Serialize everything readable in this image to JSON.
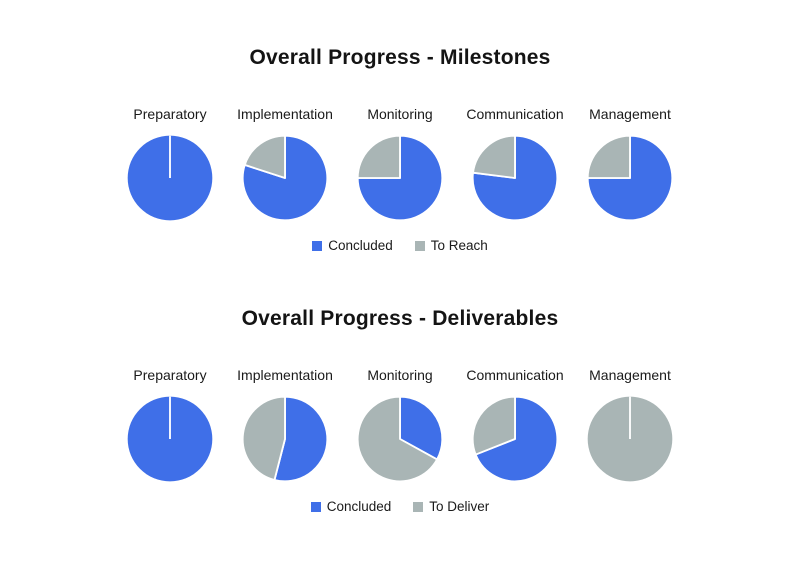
{
  "colors": {
    "concluded": "#3F6FE8",
    "remaining": "#A9B5B5",
    "separator": "#FFFFFF"
  },
  "chart_data": [
    {
      "type": "pie",
      "title": "Overall Progress - Milestones",
      "categories": [
        "Preparatory",
        "Implementation",
        "Monitoring",
        "Communication",
        "Management"
      ],
      "series": [
        {
          "name": "Concluded",
          "color": "#3F6FE8",
          "values": [
            100,
            80,
            75,
            77,
            75
          ]
        },
        {
          "name": "To Reach",
          "color": "#A9B5B5",
          "values": [
            0,
            20,
            25,
            23,
            25
          ]
        }
      ],
      "legend": [
        "Concluded",
        "To Reach"
      ],
      "legend_position": "bottom"
    },
    {
      "type": "pie",
      "title": "Overall Progress - Deliverables",
      "categories": [
        "Preparatory",
        "Implementation",
        "Monitoring",
        "Communication",
        "Management"
      ],
      "series": [
        {
          "name": "Concluded",
          "color": "#3F6FE8",
          "values": [
            100,
            54,
            33,
            69,
            0
          ]
        },
        {
          "name": "To Deliver",
          "color": "#A9B5B5",
          "values": [
            0,
            46,
            67,
            31,
            100
          ]
        }
      ],
      "legend": [
        "Concluded",
        "To Deliver"
      ],
      "legend_position": "bottom"
    }
  ]
}
